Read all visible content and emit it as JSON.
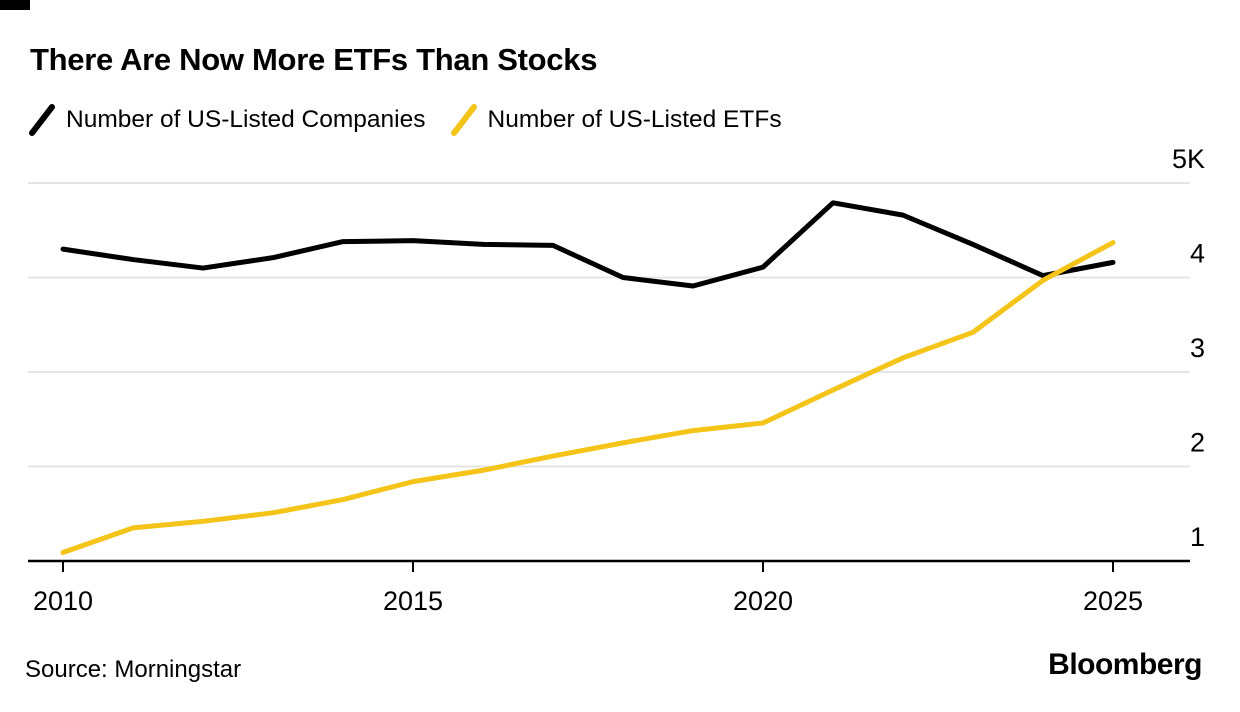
{
  "page": {
    "background": "#FFFFFF"
  },
  "header": {
    "title": "There Are Now More ETFs Than Stocks"
  },
  "legend": {
    "items": [
      {
        "label": "Number of US-Listed Companies",
        "color": "#000000"
      },
      {
        "label": "Number of US-Listed ETFs",
        "color": "#F5C418"
      }
    ]
  },
  "footer": {
    "source": "Source: Morningstar",
    "brand": "Bloomberg"
  },
  "chart_data": {
    "type": "line",
    "title": "There Are Now More ETFs Than Stocks",
    "unit": "thousands",
    "x": [
      2010,
      2011,
      2012,
      2013,
      2014,
      2015,
      2016,
      2017,
      2018,
      2019,
      2020,
      2021,
      2022,
      2023,
      2024,
      2025
    ],
    "series": [
      {
        "name": "Number of US-Listed Companies",
        "color": "#000000",
        "values": [
          4.3,
          4.19,
          4.1,
          4.21,
          4.38,
          4.39,
          4.35,
          4.34,
          4.0,
          3.91,
          4.11,
          4.79,
          4.66,
          4.35,
          4.02,
          4.16
        ]
      },
      {
        "name": "Number of US-Listed ETFs",
        "color": "#F5C418",
        "values": [
          1.09,
          1.35,
          1.42,
          1.51,
          1.65,
          1.84,
          1.96,
          2.11,
          2.25,
          2.38,
          2.46,
          2.81,
          3.15,
          3.42,
          3.97,
          4.37
        ]
      }
    ],
    "x_ticks": [
      "2010",
      "2015",
      "2020",
      "2025"
    ],
    "y_ticks": [
      {
        "label": "5K",
        "value": 5
      },
      {
        "label": "4",
        "value": 4
      },
      {
        "label": "3",
        "value": 3
      },
      {
        "label": "2",
        "value": 2
      },
      {
        "label": "1",
        "value": 1
      }
    ],
    "xlim": [
      2010,
      2025
    ],
    "ylim": [
      1,
      5
    ],
    "grid": "horizontal",
    "legend_position": "top-left",
    "gridline_color": "#E5E5E5",
    "axis_color": "#000000"
  }
}
